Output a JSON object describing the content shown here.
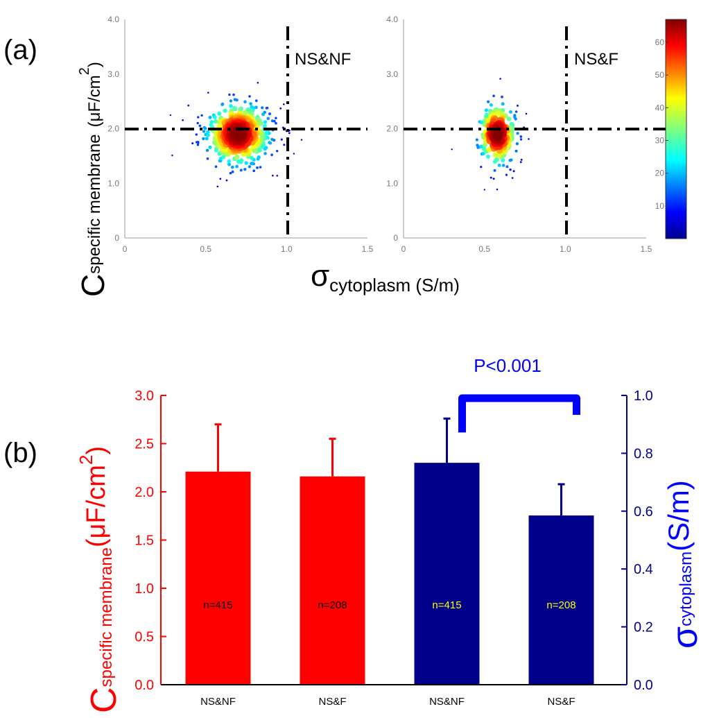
{
  "panel_a_label": "(a)",
  "panel_b_label": "(b)",
  "chart_data": [
    {
      "type": "scatter",
      "panel": "(a) left",
      "region_label": "NS&NF",
      "xlim": [
        0,
        1.5
      ],
      "ylim": [
        0,
        4.0
      ],
      "xticks": [
        "0",
        "0.5",
        "1.0",
        "1.5"
      ],
      "yticks": [
        "0",
        "1.0",
        "2.0",
        "3.0",
        "4.0"
      ],
      "thresholds": {
        "x": 1.0,
        "y": 2.0
      },
      "density_center": {
        "x": 0.7,
        "y": 1.9
      },
      "spread": {
        "x": 0.12,
        "y": 0.35
      },
      "n_points": 415,
      "grid": false
    },
    {
      "type": "scatter",
      "panel": "(a) right",
      "region_label": "NS&F",
      "xlim": [
        0,
        1.5
      ],
      "ylim": [
        0,
        4.0
      ],
      "xticks": [
        "0",
        "0.5",
        "1.0",
        "1.5"
      ],
      "yticks": [
        "0",
        "1.0",
        "2.0",
        "3.0",
        "4.0"
      ],
      "thresholds": {
        "x": 1.0,
        "y": 2.0
      },
      "density_center": {
        "x": 0.58,
        "y": 1.9
      },
      "spread": {
        "x": 0.07,
        "y": 0.35
      },
      "n_points": 208,
      "grid": false
    },
    {
      "type": "colorbar",
      "panel": "(a)",
      "range": [
        0,
        67
      ],
      "ticks": [
        "10",
        "20",
        "30",
        "40",
        "50",
        "60"
      ],
      "colormap": "jet"
    },
    {
      "type": "bar",
      "panel": "(b)",
      "categories": [
        "NS&NF",
        "NS&F",
        "NS&NF",
        "NS&F"
      ],
      "series": [
        {
          "name": "C specific membrane",
          "axis": "left",
          "color": "#ff0000",
          "bars": [
            {
              "category": 0,
              "value": 2.21,
              "error": 0.49,
              "n_label": "n=415"
            },
            {
              "category": 1,
              "value": 2.16,
              "error": 0.39,
              "n_label": "n=208"
            }
          ]
        },
        {
          "name": "σ cytoplasm",
          "axis": "right",
          "color": "#00008b",
          "bars": [
            {
              "category": 2,
              "value": 0.767,
              "error": 0.153,
              "n_label": "n=415"
            },
            {
              "category": 3,
              "value": 0.585,
              "error": 0.108,
              "n_label": "n=208"
            }
          ]
        }
      ],
      "left_axis": {
        "ylim": [
          0,
          3.0
        ],
        "ticks": [
          "0.0",
          "0.5",
          "1.0",
          "1.5",
          "2.0",
          "2.5",
          "3.0"
        ],
        "color": "#ff0000"
      },
      "right_axis": {
        "ylim": [
          0,
          1.0
        ],
        "ticks": [
          "0.0",
          "0.2",
          "0.4",
          "0.6",
          "0.8",
          "1.0"
        ],
        "color": "#00008b"
      },
      "significance": {
        "text": "P<0.001",
        "between": [
          2,
          3
        ],
        "color": "#0000ff"
      },
      "label_colors": {
        "n_on_red": "#000000",
        "n_on_blue": "#ffff00"
      }
    }
  ]
}
